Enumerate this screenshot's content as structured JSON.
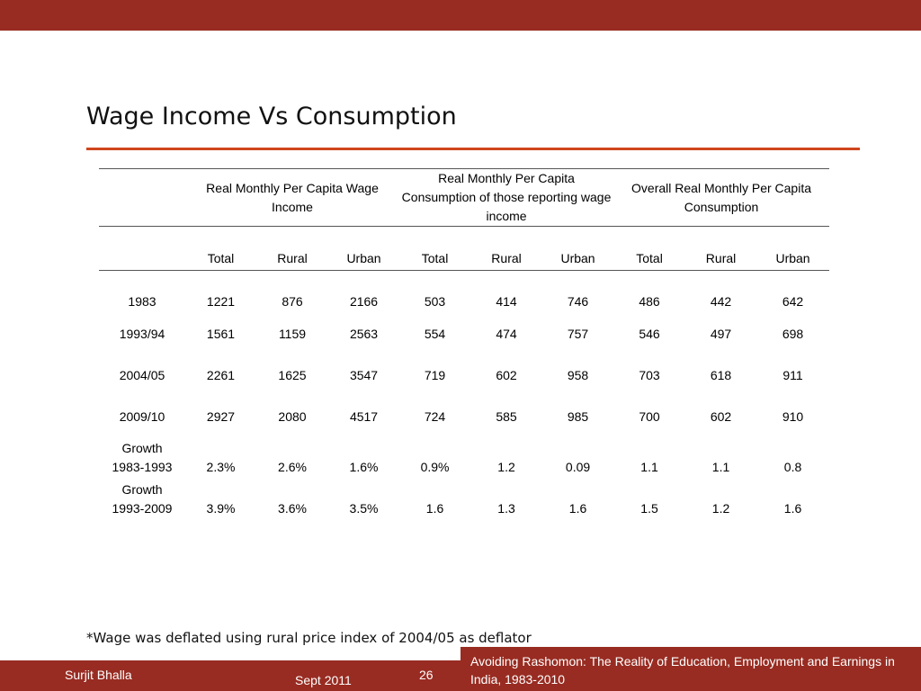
{
  "slide": {
    "title": "Wage Income Vs Consumption",
    "footnote": "*Wage was deflated using rural price index of 2004/05 as deflator"
  },
  "table": {
    "group_headers": [
      "Real Monthly Per Capita Wage Income",
      "Real  Monthly Per Capita Consumption of those reporting wage income",
      "Overall Real  Monthly Per Capita Consumption"
    ],
    "sub_headers": [
      "Total",
      "Rural",
      "Urban",
      "Total",
      "Rural",
      "Urban",
      "Total",
      "Rural",
      "Urban"
    ],
    "rows": [
      {
        "label": "1983",
        "values": [
          "1221",
          "876",
          "2166",
          "503",
          "414",
          "746",
          "486",
          "442",
          "642"
        ]
      },
      {
        "label": "1993/94",
        "values": [
          "1561",
          "1159",
          "2563",
          "554",
          "474",
          "757",
          "546",
          "497",
          "698"
        ]
      },
      {
        "label": "2004/05",
        "values": [
          "2261",
          "1625",
          "3547",
          "719",
          "602",
          "958",
          "703",
          "618",
          "911"
        ]
      },
      {
        "label": "2009/10",
        "values": [
          "2927",
          "2080",
          "4517",
          "724",
          "585",
          "985",
          "700",
          "602",
          "910"
        ]
      }
    ],
    "growth_rows": [
      {
        "label_top": "Growth",
        "label_bottom": "1983-1993",
        "values": [
          "2.3%",
          "2.6%",
          "1.6%",
          "0.9%",
          "1.2",
          "0.09",
          "1.1",
          "1.1",
          "0.8"
        ]
      },
      {
        "label_top": "Growth",
        "label_bottom": "1993-2009",
        "values": [
          "3.9%",
          "3.6%",
          "3.5%",
          "1.6",
          "1.3",
          "1.6",
          "1.5",
          "1.2",
          "1.6"
        ]
      }
    ]
  },
  "footer": {
    "author": "Surjit Bhalla",
    "date": "Sept 2011",
    "page_number": "26",
    "conference": "Avoiding Rashomon: The Reality of Education, Employment and Earnings in India, 1983-2010"
  },
  "colors": {
    "brand": "#982c22",
    "accent_rule": "#d0461e"
  }
}
